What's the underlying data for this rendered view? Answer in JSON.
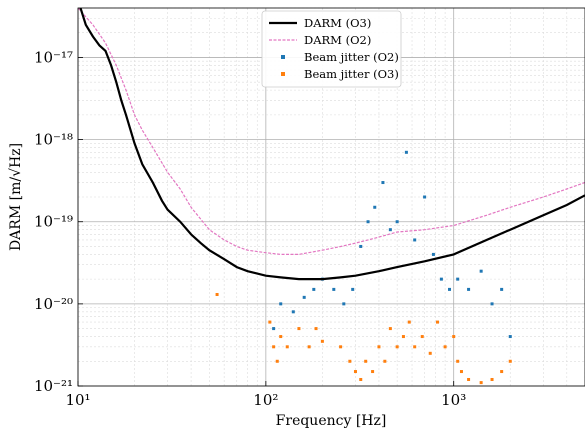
{
  "chart_data": {
    "type": "line",
    "title": "",
    "xlabel": "Frequency [Hz]",
    "ylabel": "DARM [m/√Hz]",
    "xscale": "log",
    "yscale": "log",
    "xlim": [
      10,
      5000
    ],
    "ylim": [
      1e-21,
      4e-17
    ],
    "grid": true,
    "legend_position": "top-center",
    "x_ticks": [
      {
        "value": 10,
        "label": "10¹"
      },
      {
        "value": 100,
        "label": "10²"
      },
      {
        "value": 1000,
        "label": "10³"
      }
    ],
    "y_ticks": [
      {
        "value": 1e-21,
        "label": "10⁻²¹"
      },
      {
        "value": 1e-20,
        "label": "10⁻²⁰"
      },
      {
        "value": 1e-19,
        "label": "10⁻¹⁹"
      },
      {
        "value": 1e-18,
        "label": "10⁻¹⁸"
      },
      {
        "value": 1e-17,
        "label": "10⁻¹⁷"
      }
    ],
    "series": [
      {
        "name": "DARM (O3)",
        "color": "#000000",
        "style": "line",
        "x": [
          10,
          11,
          12,
          13,
          14,
          15,
          16,
          17,
          18,
          20,
          22,
          25,
          28,
          30,
          35,
          40,
          45,
          50,
          60,
          70,
          80,
          100,
          120,
          150,
          180,
          200,
          250,
          300,
          400,
          500,
          700,
          1000,
          1500,
          2000,
          3000,
          4000,
          5000
        ],
        "y": [
          5e-17,
          2.5e-17,
          1.8e-17,
          1.4e-17,
          1.2e-17,
          8e-18,
          5e-18,
          3e-18,
          2e-18,
          9e-19,
          5e-19,
          3e-19,
          1.8e-19,
          1.4e-19,
          1e-19,
          7e-20,
          5.5e-20,
          4.5e-20,
          3.5e-20,
          2.8e-20,
          2.5e-20,
          2.2e-20,
          2.1e-20,
          2e-20,
          2e-20,
          2e-20,
          2.1e-20,
          2.2e-20,
          2.5e-20,
          2.8e-20,
          3.3e-20,
          4e-20,
          6e-20,
          8e-20,
          1.2e-19,
          1.6e-19,
          2.1e-19
        ]
      },
      {
        "name": "DARM (O2)",
        "color": "#e377c2",
        "style": "line",
        "x": [
          10,
          12,
          14,
          16,
          18,
          20,
          22,
          25,
          30,
          35,
          40,
          50,
          60,
          70,
          80,
          100,
          120,
          150,
          200,
          250,
          300,
          350,
          400,
          500,
          700,
          1000,
          1500,
          2000,
          3000,
          4000,
          5000
        ],
        "y": [
          4e-17,
          2.5e-17,
          1.5e-17,
          8e-18,
          4e-18,
          2e-18,
          1.3e-18,
          8e-19,
          4e-19,
          2.5e-19,
          1.5e-19,
          8e-20,
          6e-20,
          5e-20,
          4.5e-20,
          4.2e-20,
          4e-20,
          4e-20,
          4.5e-20,
          5e-20,
          5.5e-20,
          6e-20,
          6.5e-20,
          7.5e-20,
          8e-20,
          9e-20,
          1.2e-19,
          1.5e-19,
          2e-19,
          2.5e-19,
          3e-19
        ]
      },
      {
        "name": "Beam jitter (O2)",
        "color": "#1f77b4",
        "style": "scatter",
        "x": [
          110,
          120,
          140,
          160,
          180,
          200,
          230,
          260,
          290,
          320,
          350,
          380,
          420,
          460,
          500,
          560,
          620,
          700,
          780,
          860,
          950,
          1050,
          1200,
          1400,
          1600,
          1800,
          2000
        ],
        "y": [
          5e-21,
          1e-20,
          8e-21,
          1.2e-20,
          1.5e-20,
          2e-20,
          1.5e-20,
          1e-20,
          1.5e-20,
          5e-20,
          1e-19,
          1.5e-19,
          3e-19,
          8e-20,
          1e-19,
          7e-19,
          6e-20,
          2e-19,
          4e-20,
          2e-20,
          1.5e-20,
          2e-20,
          1.5e-20,
          2.5e-20,
          1e-20,
          1.5e-20,
          4e-21
        ]
      },
      {
        "name": "Beam jitter (O3)",
        "color": "#ff7f0e",
        "style": "scatter",
        "x": [
          55,
          105,
          110,
          115,
          120,
          130,
          150,
          170,
          185,
          200,
          250,
          280,
          300,
          320,
          340,
          370,
          400,
          430,
          460,
          500,
          540,
          580,
          620,
          680,
          750,
          820,
          900,
          1000,
          1050,
          1100,
          1200,
          1400,
          1600,
          1800,
          2000
        ],
        "y": [
          1.3e-20,
          6e-21,
          3e-21,
          2e-21,
          4e-21,
          3e-21,
          5e-21,
          3e-21,
          5e-21,
          3.5e-21,
          3e-21,
          2e-21,
          1.5e-21,
          1.2e-21,
          2e-21,
          1.5e-21,
          3e-21,
          2e-21,
          5e-21,
          3e-21,
          4e-21,
          6e-21,
          3e-21,
          4e-21,
          2.5e-21,
          6e-21,
          3e-21,
          4e-21,
          2e-21,
          1.5e-21,
          1.2e-21,
          1.1e-21,
          1.2e-21,
          1.5e-21,
          2e-21
        ]
      }
    ]
  }
}
